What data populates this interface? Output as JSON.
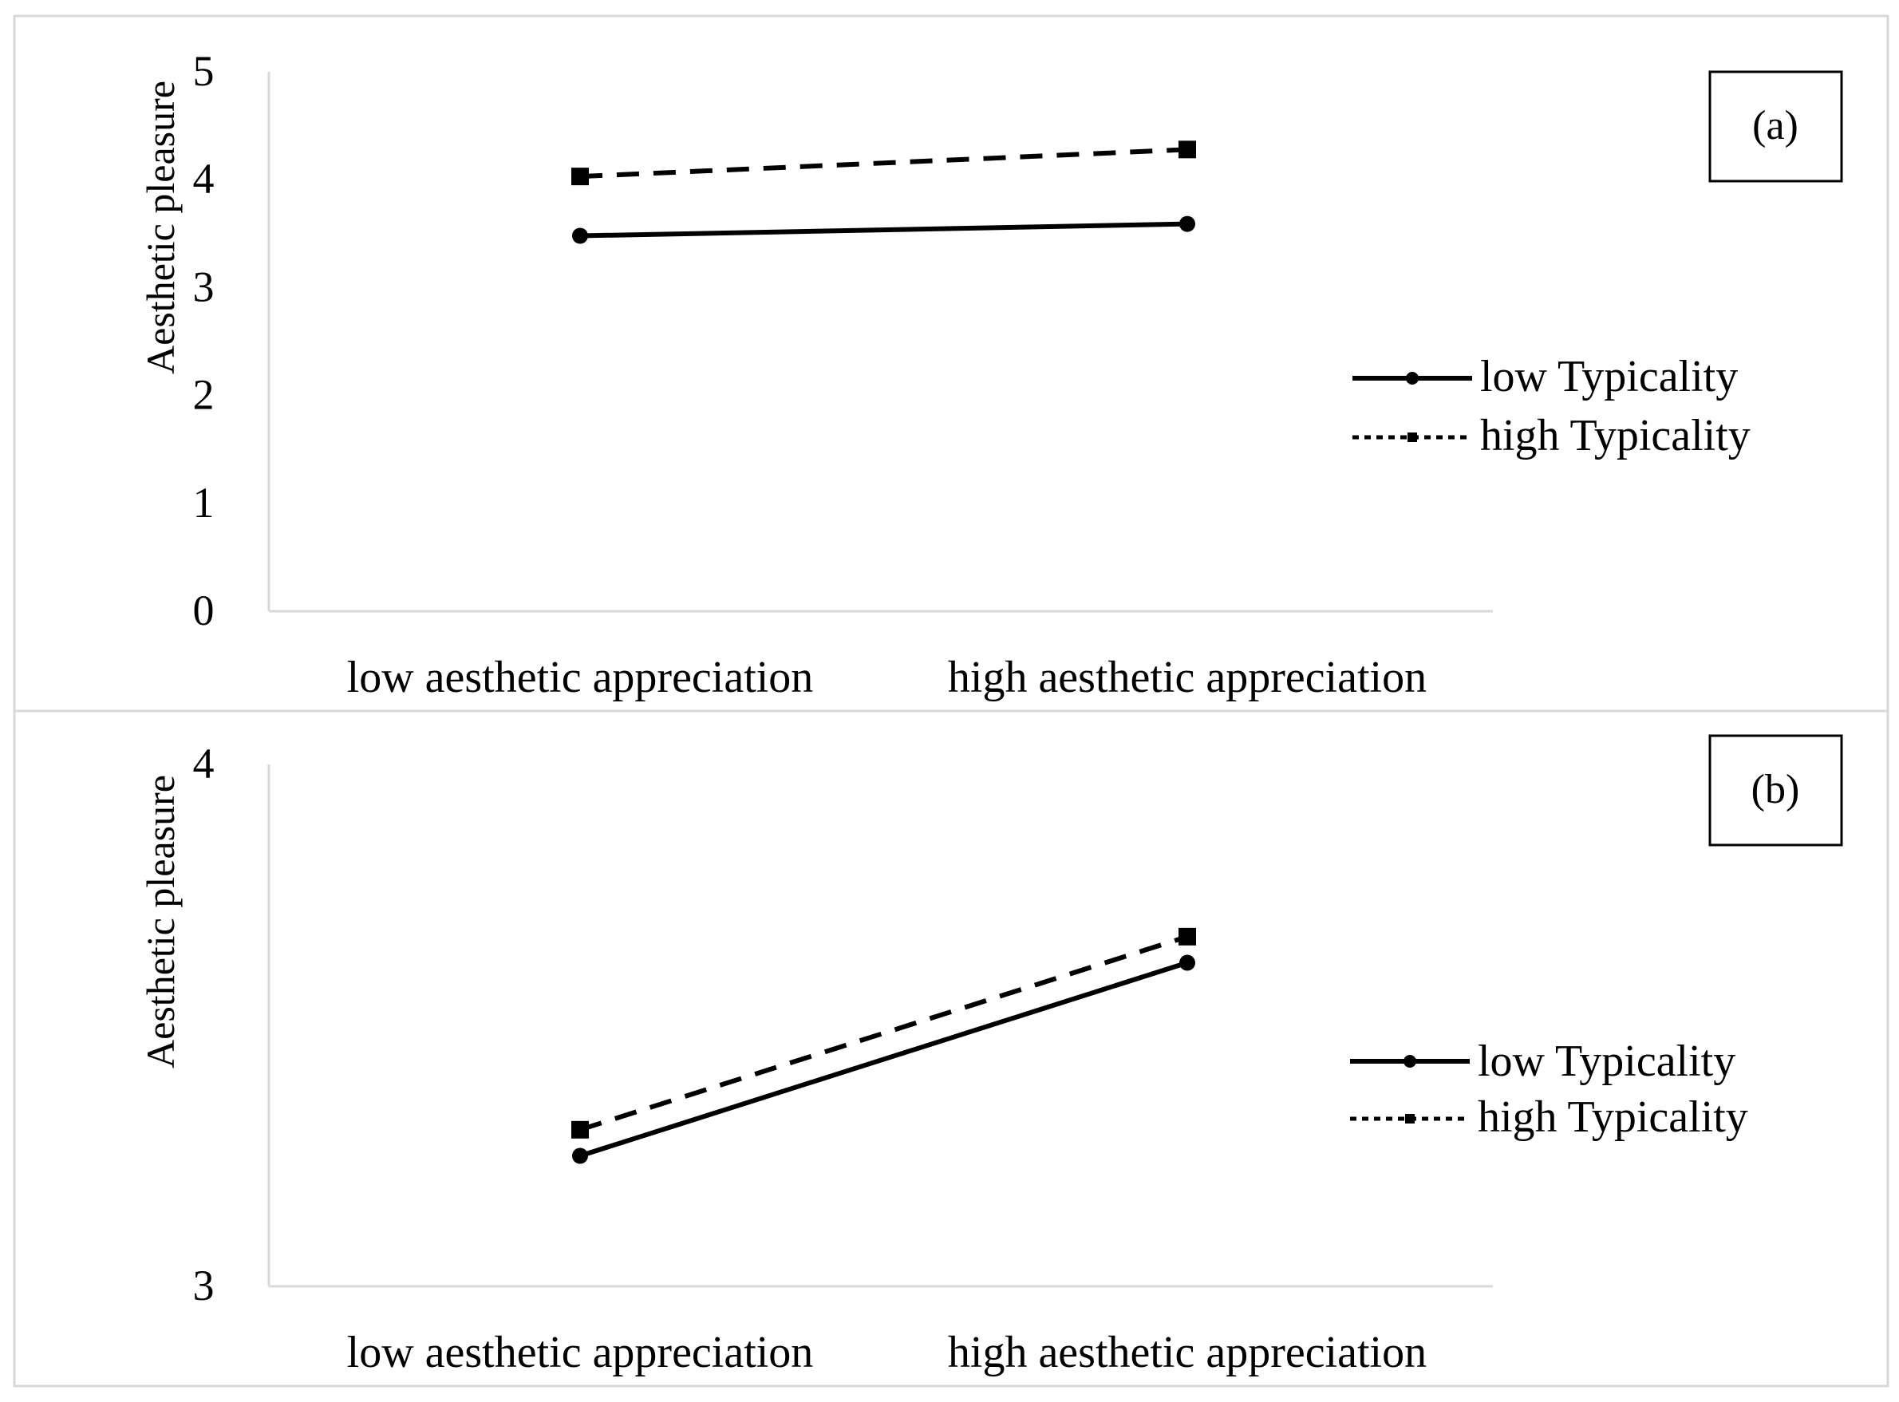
{
  "chart_data": [
    {
      "type": "line",
      "panel_label": "(a)",
      "ylabel": "Aesthetic pleasure",
      "categories": [
        "low aesthetic appreciation",
        "high aesthetic appreciation"
      ],
      "ylim": [
        0,
        5
      ],
      "yticks": [
        "0",
        "1",
        "2",
        "3",
        "4",
        "5"
      ],
      "grid": false,
      "legend_position": "right",
      "series": [
        {
          "name": "low Typicality",
          "values": [
            3.48,
            3.59
          ],
          "line_style": "solid",
          "marker": "circle"
        },
        {
          "name": "high Typicality",
          "values": [
            4.03,
            4.28
          ],
          "line_style": "dashed",
          "marker": "square"
        }
      ]
    },
    {
      "type": "line",
      "panel_label": "(b)",
      "ylabel": "Aesthetic pleasure",
      "categories": [
        "low aesthetic appreciation",
        "high aesthetic appreciation"
      ],
      "ylim": [
        3,
        4
      ],
      "yticks": [
        "3",
        "4"
      ],
      "grid": false,
      "legend_position": "right",
      "series": [
        {
          "name": "low Typicality",
          "values": [
            3.25,
            3.62
          ],
          "line_style": "solid",
          "marker": "circle"
        },
        {
          "name": "high Typicality",
          "values": [
            3.3,
            3.67
          ],
          "line_style": "dashed",
          "marker": "square"
        }
      ]
    }
  ]
}
